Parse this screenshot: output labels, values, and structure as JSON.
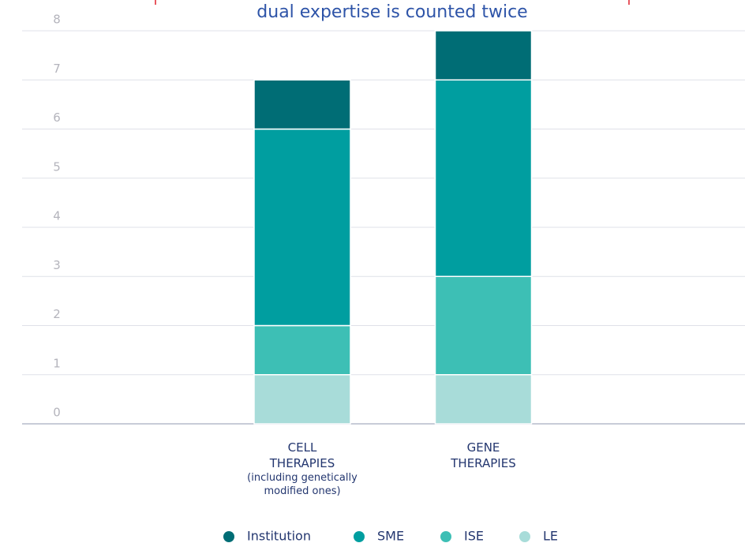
{
  "chart_data": {
    "type": "stacked_bar",
    "title": "dual expertise is counted twice",
    "categories": [
      "CELL THERAPIES",
      "GENE THERAPIES"
    ],
    "category_notes": [
      "(including genetically modified ones)",
      null
    ],
    "series": [
      {
        "name": "LE",
        "color": "#a8dcd9",
        "values": [
          1,
          1
        ]
      },
      {
        "name": "ISE",
        "color": "#3dbfb5",
        "values": [
          1,
          2
        ]
      },
      {
        "name": "SME",
        "color": "#009ea0",
        "values": [
          4,
          4
        ]
      },
      {
        "name": "Institution",
        "color": "#006d75",
        "values": [
          1,
          1
        ]
      }
    ],
    "ylim": [
      0,
      8
    ],
    "yticks": [
      0,
      1,
      2,
      3,
      4,
      5,
      6,
      7,
      8
    ],
    "grid": true
  }
}
